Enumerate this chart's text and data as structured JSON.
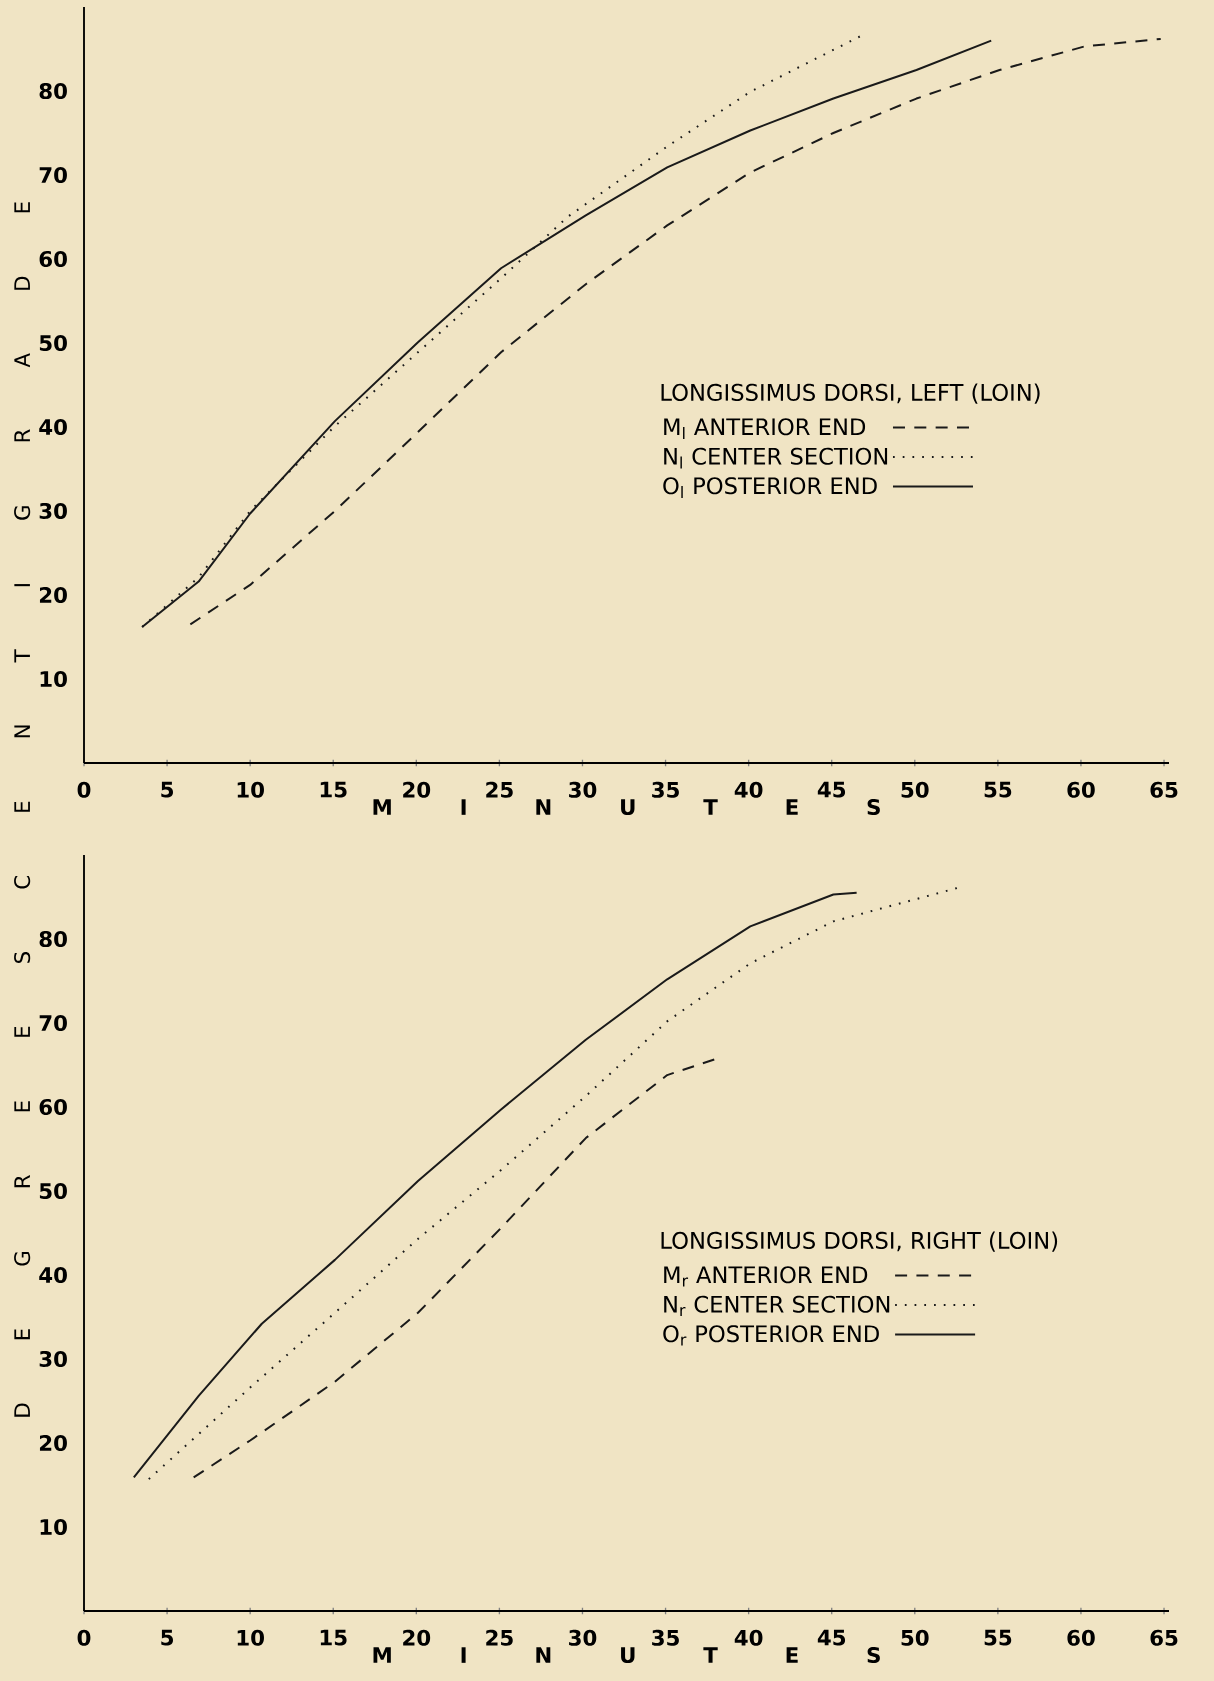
{
  "chart_data": [
    {
      "type": "line",
      "ylabel": "D E G R E E S C E N T I G R A D E",
      "xlabel": "M I N U T E S",
      "legend_title": "LONGISSIMUS DORSI, LEFT (LOIN)",
      "legend": "right",
      "xlim": [
        0,
        65.3
      ],
      "ylim": [
        0,
        90
      ],
      "xticks": [
        0,
        5,
        10,
        15,
        20,
        25,
        30,
        35,
        40,
        45,
        50,
        55,
        60,
        65
      ],
      "yticks": [
        10,
        20,
        30,
        40,
        50,
        60,
        70,
        80
      ],
      "series": [
        {
          "name": "M$_{l}$ ANTERIOR END",
          "color": "#1a1a1a",
          "line_style": "dashed",
          "x": [
            6.4,
            10,
            15.1,
            20.1,
            25.1,
            30.2,
            35.1,
            40.1,
            45.1,
            50.1,
            55.1,
            60.2,
            64.8
          ],
          "values": [
            16.5,
            21.2,
            30,
            39.4,
            48.9,
            57,
            64,
            70.3,
            75,
            79.1,
            82.5,
            85.3,
            86.2
          ]
        },
        {
          "name": "N$_{l}$ CENTER SECTION",
          "color": "#1a1a1a",
          "line_style": "dotted",
          "x": [
            3.5,
            6.9,
            10,
            15.1,
            20.1,
            25.1,
            29.1,
            35.1,
            40.1,
            46.8
          ],
          "values": [
            16.2,
            22.1,
            30,
            40.1,
            48.9,
            57.7,
            65,
            73.4,
            79.9,
            86.6
          ]
        },
        {
          "name": "O$_{l}$ POSTERIOR END",
          "color": "#1a1a1a",
          "line_style": "solid",
          "x": [
            3.5,
            6.9,
            10,
            15.1,
            20.1,
            25.1,
            30.2,
            35.1,
            40.1,
            45.1,
            50.1,
            54.6
          ],
          "values": [
            16.2,
            21.6,
            29.7,
            40.7,
            50.1,
            58.9,
            65.2,
            70.9,
            75.3,
            79.1,
            82.5,
            86
          ]
        }
      ]
    },
    {
      "type": "line",
      "xlabel": "M I N U T E S",
      "legend_title": "LONGISSIMUS DORSI, RIGHT (LOIN)",
      "legend": "right",
      "xlim": [
        0,
        65.3
      ],
      "ylim": [
        0,
        90
      ],
      "xticks": [
        0,
        5,
        10,
        15,
        20,
        25,
        30,
        35,
        40,
        45,
        50,
        55,
        60,
        65
      ],
      "yticks": [
        10,
        20,
        30,
        40,
        50,
        60,
        70,
        80
      ],
      "series": [
        {
          "name": "M$_{r}$ ANTERIOR END",
          "color": "#1a1a1a",
          "line_style": "dashed",
          "x": [
            6.6,
            10,
            15.1,
            20.1,
            25.1,
            30.2,
            35.1,
            38
          ],
          "values": [
            15.9,
            20.3,
            27.3,
            35.5,
            45.6,
            56.3,
            63.8,
            65.7
          ]
        },
        {
          "name": "N$_{r}$ CENTER SECTION",
          "color": "#1a1a1a",
          "line_style": "dotted",
          "x": [
            3.9,
            10,
            15.1,
            20.1,
            25.1,
            30.2,
            35.1,
            40.1,
            45.1,
            52.8
          ],
          "values": [
            15.7,
            26.6,
            35.5,
            44.3,
            52.5,
            61.3,
            70.2,
            77.1,
            82.1,
            86.2
          ]
        },
        {
          "name": "O$_{r}$ POSTERIOR END",
          "color": "#1a1a1a",
          "line_style": "solid",
          "x": [
            3,
            6.9,
            10.7,
            15.1,
            20.1,
            25.1,
            30.2,
            35.1,
            40.1,
            45.1,
            46.5
          ],
          "values": [
            15.9,
            25.6,
            34.2,
            41.8,
            51.2,
            59.7,
            68,
            75.2,
            81.5,
            85.3,
            85.5
          ]
        }
      ]
    }
  ]
}
